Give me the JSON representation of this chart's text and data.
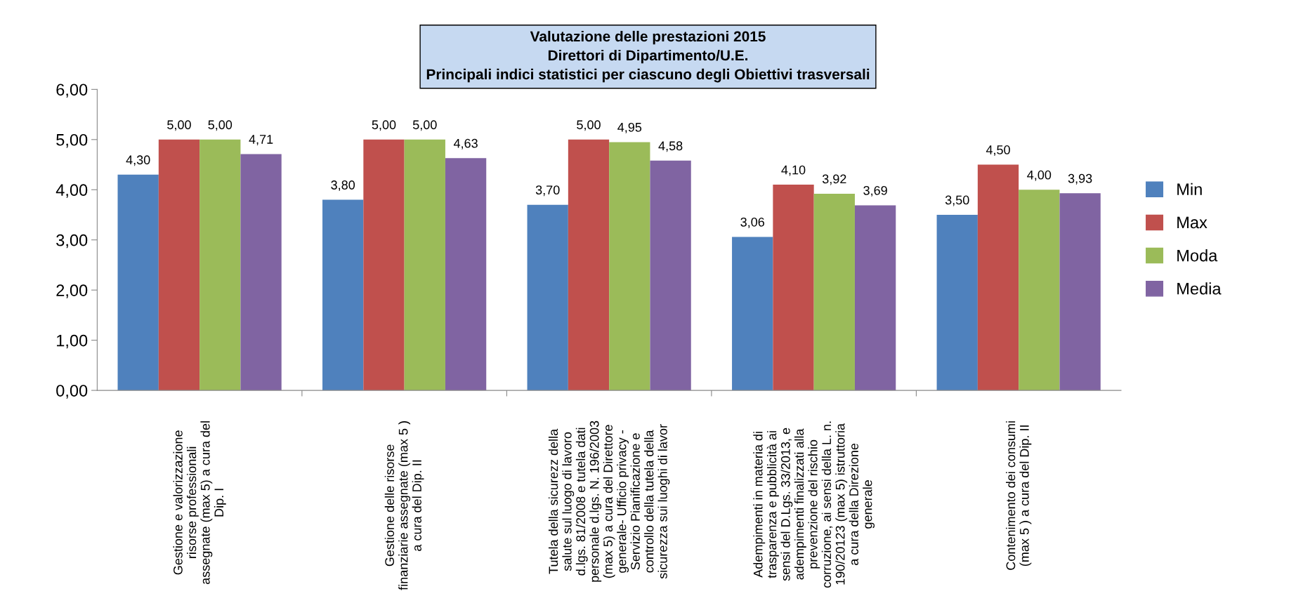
{
  "chart_data": {
    "type": "bar",
    "title": "Valutazione delle prestazioni 2015\nDirettori di Dipartimento/U.E.\nPrincipali indici statistici per ciascuno degli Obiettivi trasversali",
    "categories": [
      "Gestione e valorizzazione\nrisorse professionali\nassegnate (max 5) a cura del\nDip. I",
      "Gestione delle risorse\nfinanziarie assegnate (max 5 )\na cura del Dip. II",
      "Tutela della sicurezz della\nsalute sul luogo di lavoro\nd.lgs. 81/2008 e tutela dati\npersonale d.lgs. N. 196/2003\n(max 5) a cura del Direttore\ngenerale- Ufficio privacy -\nServizio Pianificazione e\ncontrollo della tutela della\nsicurezza sui luoghi di lavor",
      "Adempimenti in materia di\ntrasparenza e pubblicità ai\nsensi del D.Lgs. 33/2013, e\nadempimenti finalizzati alla\nprevenzione del rischio\ncorruzione, ai sensi della L. n.\n190/20123 (max 5) istruttoria\na cura della Direzione\ngenerale",
      "Contenimento dei consumi\n(max 5 ) a cura del Dip. II"
    ],
    "series": [
      {
        "name": "Min",
        "color": "#4f81bd",
        "values": [
          4.3,
          3.8,
          3.7,
          3.06,
          3.5
        ],
        "value_labels": [
          "4,30",
          "3,80",
          "3,70",
          "3,06",
          "3,50"
        ]
      },
      {
        "name": "Max",
        "color": "#c0504d",
        "values": [
          5.0,
          5.0,
          5.0,
          4.1,
          4.5
        ],
        "value_labels": [
          "5,00",
          "5,00",
          "5,00",
          "4,10",
          "4,50"
        ]
      },
      {
        "name": "Moda",
        "color": "#9bbb59",
        "values": [
          5.0,
          5.0,
          4.95,
          3.92,
          4.0
        ],
        "value_labels": [
          "5,00",
          "5,00",
          "4,95",
          "3,92",
          "4,00"
        ]
      },
      {
        "name": "Media",
        "color": "#8064a2",
        "values": [
          4.71,
          4.63,
          4.58,
          3.69,
          3.93
        ],
        "value_labels": [
          "4,71",
          "4,63",
          "4,58",
          "3,69",
          "3,93"
        ]
      }
    ],
    "ylim": [
      0,
      6
    ],
    "yticks": [
      {
        "value": 0,
        "label": "0,00"
      },
      {
        "value": 1,
        "label": "1,00"
      },
      {
        "value": 2,
        "label": "2,00"
      },
      {
        "value": 3,
        "label": "3,00"
      },
      {
        "value": 4,
        "label": "4,00"
      },
      {
        "value": 5,
        "label": "5,00"
      },
      {
        "value": 6,
        "label": "6,00"
      }
    ],
    "grid": false,
    "legend": "right"
  }
}
